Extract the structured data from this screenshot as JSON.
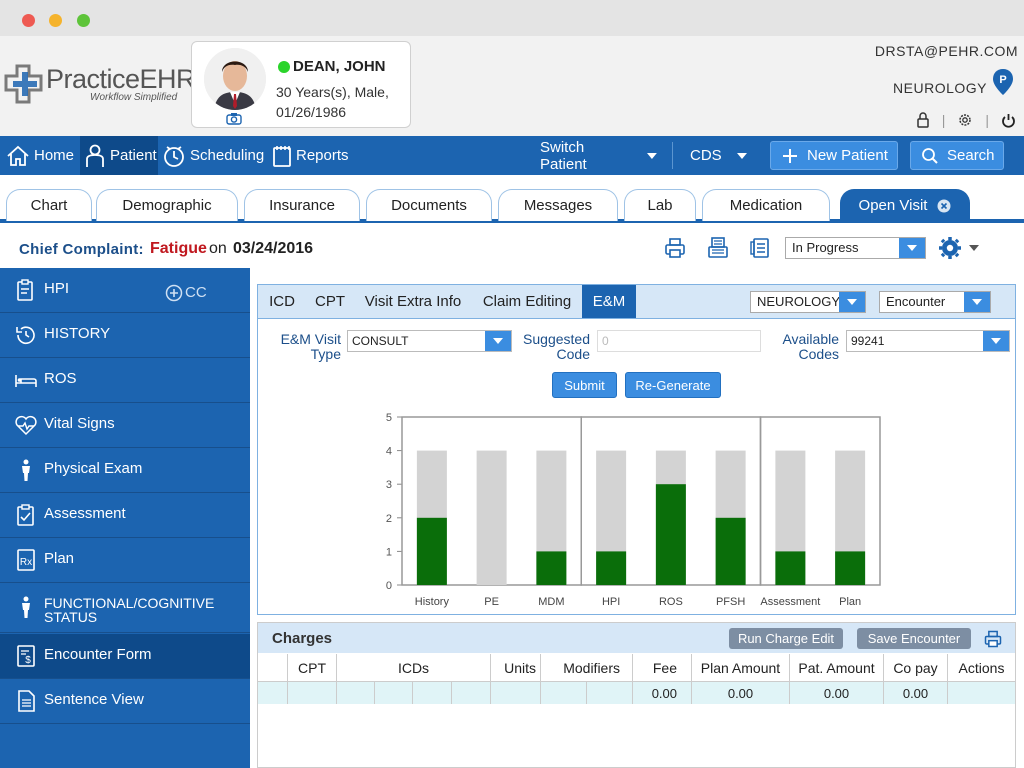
{
  "window": {
    "buttons": [
      "close",
      "minimize",
      "maximize"
    ]
  },
  "brand": {
    "name": "PracticeEHR",
    "tagline": "Workflow Simplified"
  },
  "patient": {
    "name": "DEAN, JOHN",
    "age_sex": "30 Years(s), Male,",
    "dob": "01/26/1986",
    "status_color": "#2bd42b"
  },
  "user": {
    "email": "DRSTA@PEHR.COM",
    "specialty": "NEUROLOGY"
  },
  "nav": {
    "home": "Home",
    "patient": "Patient",
    "scheduling": "Scheduling",
    "reports": "Reports",
    "switch_patient": "Switch Patient",
    "cds": "CDS",
    "new_patient": "New Patient",
    "search": "Search"
  },
  "tabs": [
    "Chart",
    "Demographic",
    "Insurance",
    "Documents",
    "Messages",
    "Lab",
    "Medication",
    "Open Visit"
  ],
  "complaint": {
    "label": "Chief Complaint:",
    "value": "Fatigue",
    "on": "on",
    "date": "03/24/2016",
    "status": "In Progress"
  },
  "sidebar": {
    "cc": "CC",
    "items": [
      "HPI",
      "HISTORY",
      "ROS",
      "Vital Signs",
      "Physical Exam",
      "Assessment",
      "Plan",
      "FUNCTIONAL/COGNITIVE STATUS",
      "Encounter Form",
      "Sentence View"
    ]
  },
  "subtabs": [
    "ICD",
    "CPT",
    "Visit Extra Info",
    "Claim Editing",
    "E&M"
  ],
  "em": {
    "specialty": "NEUROLOGY",
    "encounter": "Encounter",
    "visit_type_label_1": "E&M Visit",
    "visit_type_label_2": "Type",
    "visit_type": "CONSULT",
    "suggested_label_1": "Suggested",
    "suggested_label_2": "Code",
    "suggested_code": "0",
    "available_label_1": "Available",
    "available_label_2": "Codes",
    "available_code": "99241",
    "submit": "Submit",
    "regenerate": "Re-Generate"
  },
  "chart_data": {
    "type": "bar",
    "categories": [
      "History",
      "PE",
      "MDM",
      "HPI",
      "ROS",
      "PFSH",
      "Assessment",
      "Plan"
    ],
    "groups": [
      [
        0,
        1,
        2
      ],
      [
        3,
        4,
        5
      ],
      [
        6,
        7
      ]
    ],
    "series": [
      {
        "values": [
          4,
          4,
          4,
          4,
          4,
          4,
          4,
          4
        ],
        "color": "#d3d3d3"
      },
      {
        "values": [
          2,
          0,
          1,
          1,
          3,
          2,
          1,
          1
        ],
        "color": "#0a6e0a"
      }
    ],
    "ylim": [
      0,
      5
    ],
    "yticks": [
      "0",
      "1",
      "2",
      "3",
      "4",
      "5"
    ],
    "grid": false
  },
  "charges": {
    "title": "Charges",
    "run_charge_edit": "Run Charge Edit",
    "save_encounter": "Save Encounter",
    "columns": [
      "CPT",
      "ICDs",
      "Units",
      "Modifiers",
      "Fee",
      "Plan Amount",
      "Pat. Amount",
      "Co pay",
      "Actions"
    ],
    "row": {
      "fee": "0.00",
      "plan_amount": "0.00",
      "pat_amount": "0.00",
      "co_pay": "0.00"
    }
  }
}
